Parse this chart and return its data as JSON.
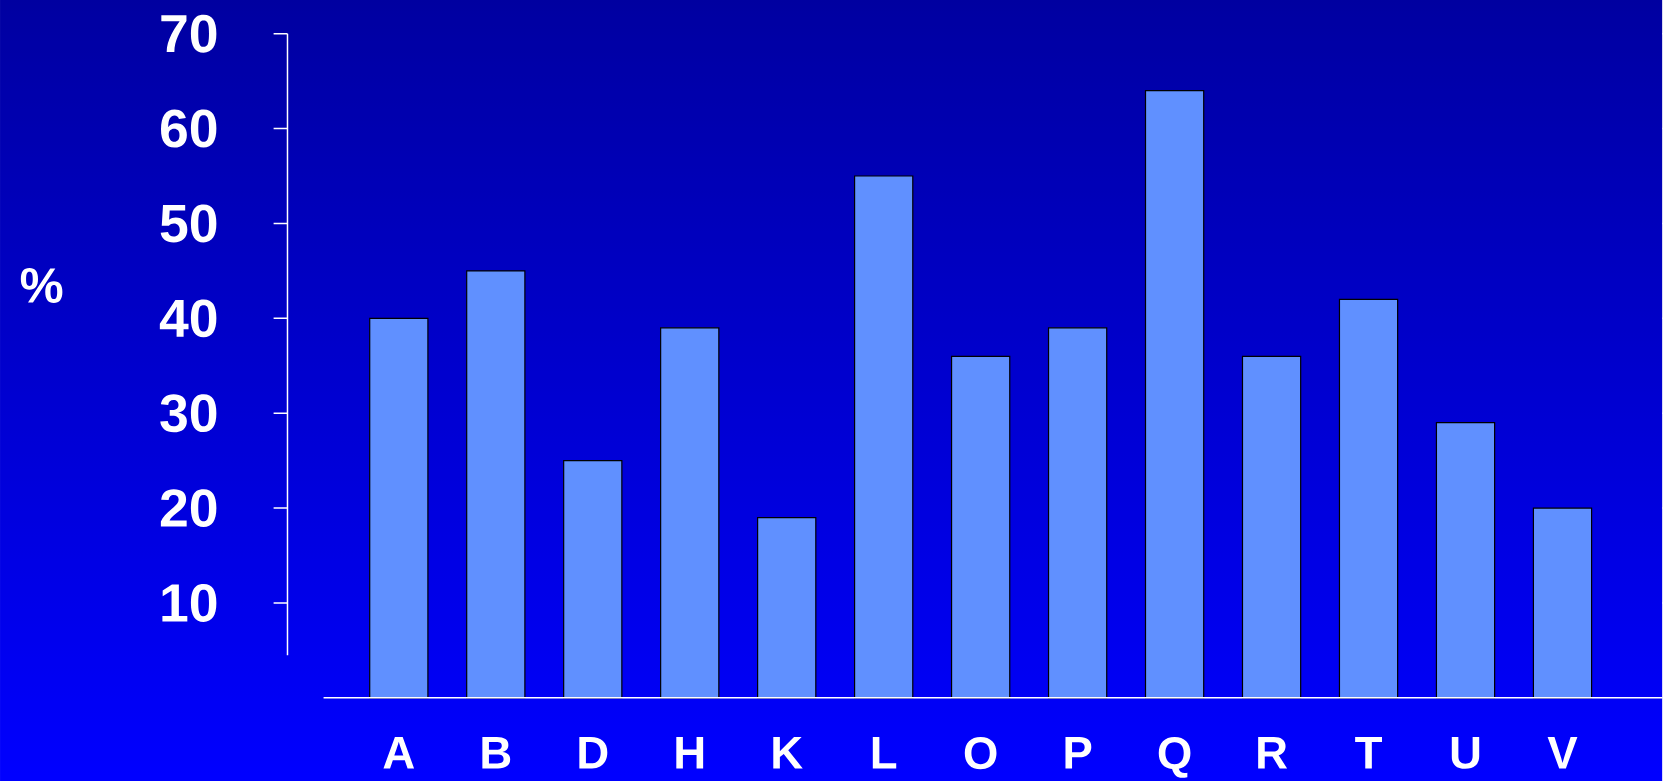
{
  "chart_data": {
    "type": "bar",
    "ylabel": "%",
    "categories": [
      "A",
      "B",
      "D",
      "H",
      "K",
      "L",
      "O",
      "P",
      "Q",
      "R",
      "T",
      "U",
      "V"
    ],
    "values": [
      40,
      45,
      25,
      39,
      19,
      55,
      36,
      39,
      64,
      36,
      42,
      29,
      20
    ],
    "color": "#6090ff",
    "ylim": [
      0,
      70
    ],
    "yticks": [
      10,
      20,
      30,
      40,
      50,
      60,
      70
    ]
  }
}
